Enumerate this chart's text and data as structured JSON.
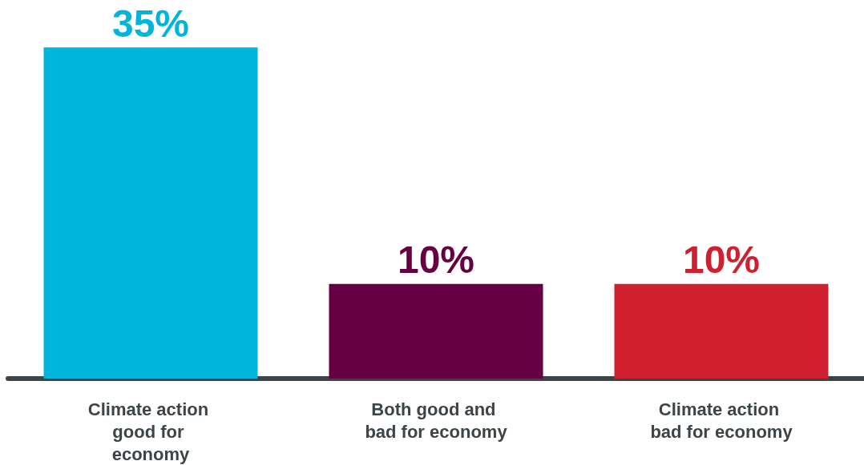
{
  "chart_data": {
    "type": "bar",
    "categories": [
      "Climate action good for economy",
      "Both good and bad for economy",
      "Climate action bad for economy"
    ],
    "values": [
      35,
      10,
      10
    ],
    "colors": [
      "#00b5dc",
      "#660042",
      "#d02030"
    ],
    "value_labels": [
      "35%",
      "10%",
      "10%"
    ]
  }
}
